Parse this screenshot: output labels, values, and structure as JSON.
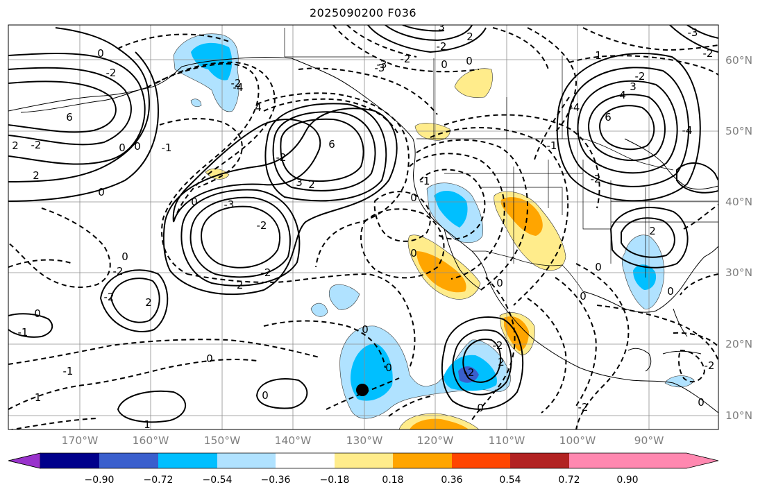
{
  "title": "2025090200 F036",
  "lon_labels": [
    "170°W",
    "160°W",
    "150°W",
    "140°W",
    "130°W",
    "120°W",
    "110°W",
    "100°W",
    "90°W"
  ],
  "lat_labels": [
    "60°N",
    "50°N",
    "40°N",
    "30°N",
    "20°N",
    "10°N"
  ],
  "colorbar": {
    "ticks": [
      "−0.90",
      "−0.72",
      "−0.54",
      "−0.36",
      "−0.18",
      "0.18",
      "0.36",
      "0.54",
      "0.72",
      "0.90"
    ],
    "colors": [
      "#9932cc",
      "#00008b",
      "#3a5fcd",
      "#00bfff",
      "#b0e2ff",
      "#ffffff",
      "#ffec8b",
      "#ffa500",
      "#ff4500",
      "#b22222",
      "#ff88b0"
    ]
  },
  "contour_labels": [
    "3",
    "2",
    "-2",
    "-3",
    "0",
    "0",
    "-3",
    "-2",
    "1",
    "-2",
    "3",
    "4",
    "6",
    "-4",
    "-1",
    "-2",
    "-4",
    "6",
    "3",
    "2",
    "0",
    "2",
    "2",
    "-2",
    "4",
    "-2",
    "-2",
    "0",
    "-3",
    "-2",
    "-2",
    "-2",
    "0",
    "-2",
    "6",
    "0",
    "2",
    "-2",
    "-4",
    "-3",
    "-1",
    "0",
    "0",
    "-1",
    "2",
    "-2",
    "-2",
    "0",
    "0",
    "1",
    "0",
    "-1",
    "0",
    "0",
    "-2",
    "-2",
    "2",
    "0",
    "0",
    "-2",
    "-2",
    "-1",
    "0",
    "0",
    "0",
    "0",
    "0",
    "-1",
    "0"
  ],
  "marker": "storm-center"
}
